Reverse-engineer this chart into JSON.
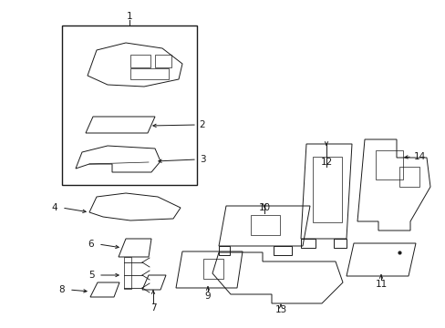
{
  "bg_color": "#ffffff",
  "line_color": "#1a1a1a",
  "fig_width": 4.89,
  "fig_height": 3.6,
  "dpi": 100,
  "lw": 0.7,
  "label_fs": 7.5
}
